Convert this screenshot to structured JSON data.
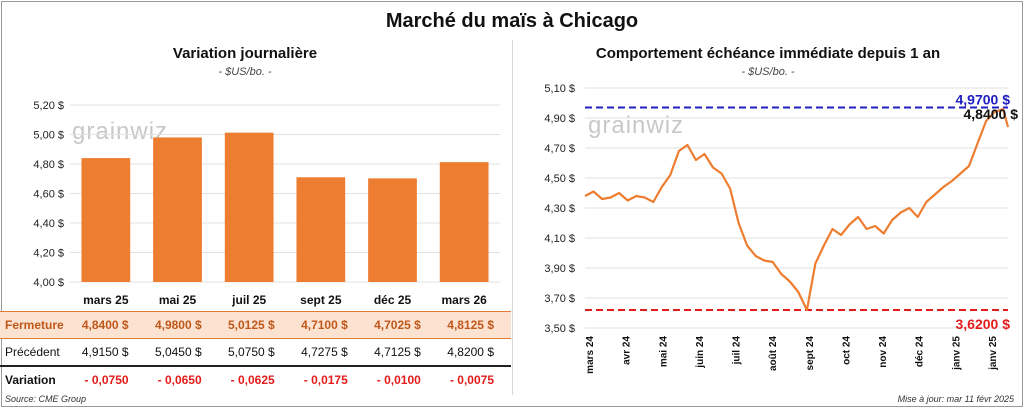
{
  "main_title": "Marché du maïs à Chicago",
  "left": {
    "subtitle": "Variation journalière",
    "unit": "- $US/bo. -",
    "watermark": "grainwiz"
  },
  "right": {
    "subtitle": "Comportement échéance immédiate depuis 1 an",
    "unit": "- $US/bo. -",
    "watermark": "grainwiz"
  },
  "table": {
    "rows": [
      {
        "label": "Fermeture",
        "values": [
          "4,8400 $",
          "4,9800 $",
          "5,0125 $",
          "4,7100 $",
          "4,7025 $",
          "4,8125 $"
        ]
      },
      {
        "label": "Précédent",
        "values": [
          "4,9150 $",
          "5,0450 $",
          "5,0750 $",
          "4,7275 $",
          "4,7125 $",
          "4,8200 $"
        ]
      },
      {
        "label": "Variation",
        "values": [
          "- 0,0750",
          "- 0,0650",
          "- 0,0625",
          "- 0,0175",
          "- 0,0100",
          "- 0,0075"
        ]
      }
    ]
  },
  "footer": {
    "source": "Source: CME Group",
    "updated": "Mise à jour: mar 11 févr 2025"
  },
  "chart_data": [
    {
      "type": "bar",
      "title": "Variation journalière",
      "ylabel": "- $US/bo. -",
      "categories": [
        "mars 25",
        "mai 25",
        "juil 25",
        "sept 25",
        "déc 25",
        "mars 26"
      ],
      "values": [
        4.84,
        4.98,
        5.0125,
        4.71,
        4.7025,
        4.8125
      ],
      "ylim": [
        4.0,
        5.2
      ],
      "yticks": [
        4.0,
        4.2,
        4.4,
        4.6,
        4.8,
        5.0,
        5.2
      ],
      "ytick_labels": [
        "4,00 $",
        "4,20 $",
        "4,40 $",
        "4,60 $",
        "4,80 $",
        "5,00 $",
        "5,20 $"
      ],
      "color": "#ed7d31",
      "grid": true
    },
    {
      "type": "line",
      "title": "Comportement échéance immédiate depuis 1 an",
      "ylabel": "- $US/bo. -",
      "ylim": [
        3.5,
        5.1
      ],
      "yticks": [
        3.5,
        3.7,
        3.9,
        4.1,
        4.3,
        4.5,
        4.7,
        4.9,
        5.1
      ],
      "ytick_labels": [
        "3,50 $",
        "3,70 $",
        "3,90 $",
        "4,10 $",
        "4,30 $",
        "4,50 $",
        "4,70 $",
        "4,90 $",
        "5,10 $"
      ],
      "xtick_labels": [
        "mars 24",
        "avr 24",
        "mai 24",
        "juin 24",
        "juil 24",
        "août 24",
        "sept 24",
        "oct 24",
        "nov 24",
        "déc 24",
        "janv 25",
        "janv 25"
      ],
      "x": [
        "2024-03-01",
        "2024-03-08",
        "2024-03-15",
        "2024-03-22",
        "2024-03-29",
        "2024-04-05",
        "2024-04-12",
        "2024-04-19",
        "2024-04-26",
        "2024-05-03",
        "2024-05-10",
        "2024-05-17",
        "2024-05-24",
        "2024-05-31",
        "2024-06-07",
        "2024-06-14",
        "2024-06-21",
        "2024-06-28",
        "2024-07-05",
        "2024-07-12",
        "2024-07-19",
        "2024-07-26",
        "2024-08-02",
        "2024-08-09",
        "2024-08-16",
        "2024-08-23",
        "2024-08-30",
        "2024-09-06",
        "2024-09-13",
        "2024-09-20",
        "2024-09-27",
        "2024-10-04",
        "2024-10-11",
        "2024-10-18",
        "2024-10-25",
        "2024-11-01",
        "2024-11-08",
        "2024-11-15",
        "2024-11-22",
        "2024-11-29",
        "2024-12-06",
        "2024-12-13",
        "2024-12-20",
        "2024-12-27",
        "2025-01-03",
        "2025-01-10",
        "2025-01-17",
        "2025-01-24",
        "2025-01-31",
        "2025-02-07",
        "2025-02-11"
      ],
      "y": [
        4.38,
        4.41,
        4.36,
        4.37,
        4.4,
        4.35,
        4.38,
        4.37,
        4.34,
        4.44,
        4.52,
        4.68,
        4.72,
        4.62,
        4.66,
        4.57,
        4.53,
        4.43,
        4.2,
        4.05,
        3.98,
        3.95,
        3.94,
        3.86,
        3.81,
        3.74,
        3.62,
        3.93,
        4.05,
        4.16,
        4.12,
        4.19,
        4.24,
        4.16,
        4.18,
        4.13,
        4.22,
        4.27,
        4.3,
        4.24,
        4.34,
        4.39,
        4.44,
        4.48,
        4.53,
        4.58,
        4.73,
        4.88,
        4.94,
        4.96,
        4.84
      ],
      "reference_lines": [
        {
          "value": 4.97,
          "label": "4,9700 $",
          "color": "#2020c0"
        },
        {
          "value": 3.62,
          "label": "3,6200 $",
          "color": "#e41b1b"
        }
      ],
      "last_value_label": "4,8400 $",
      "color": "#ed7d31",
      "grid": true
    }
  ]
}
